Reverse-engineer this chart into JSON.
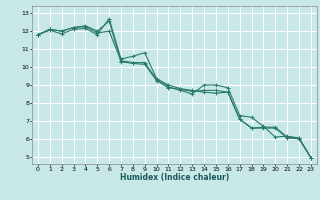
{
  "xlabel": "Humidex (Indice chaleur)",
  "ylabel": "",
  "bg_color": "#c8e8e8",
  "grid_color": "#ffffff",
  "line_color": "#2a7a6a",
  "xlim": [
    -0.5,
    23.5
  ],
  "ylim": [
    4.6,
    13.4
  ],
  "yticks": [
    5,
    6,
    7,
    8,
    9,
    10,
    11,
    12,
    13
  ],
  "xticks": [
    0,
    1,
    2,
    3,
    4,
    5,
    6,
    7,
    8,
    9,
    10,
    11,
    12,
    13,
    14,
    15,
    16,
    17,
    18,
    19,
    20,
    21,
    22,
    23
  ],
  "line1_x": [
    0,
    1,
    2,
    3,
    4,
    5,
    6,
    7,
    8,
    9,
    10,
    11,
    12,
    13,
    14,
    15,
    16,
    17,
    18,
    19,
    20,
    21,
    22,
    23
  ],
  "line1_y": [
    11.8,
    12.1,
    12.0,
    12.2,
    12.3,
    12.0,
    12.55,
    10.3,
    10.2,
    10.15,
    9.25,
    8.85,
    8.75,
    8.65,
    8.7,
    8.7,
    8.6,
    7.1,
    6.6,
    6.65,
    6.65,
    6.1,
    6.05,
    4.95
  ],
  "line2_x": [
    0,
    1,
    2,
    3,
    4,
    5,
    6,
    7,
    8,
    9,
    10,
    11,
    12,
    13,
    14,
    15,
    16,
    17,
    18,
    19,
    20,
    21,
    22,
    23
  ],
  "line2_y": [
    11.8,
    12.1,
    12.0,
    12.2,
    12.25,
    11.9,
    12.0,
    10.35,
    10.25,
    10.25,
    9.3,
    8.9,
    8.7,
    8.5,
    9.0,
    9.0,
    8.85,
    7.3,
    7.2,
    6.7,
    6.1,
    6.15,
    6.05,
    4.95
  ],
  "line3_x": [
    0,
    1,
    2,
    3,
    4,
    5,
    6,
    7,
    8,
    9,
    10,
    11,
    12,
    13,
    14,
    15,
    16,
    17,
    18,
    19,
    20,
    21,
    22,
    23
  ],
  "line3_y": [
    11.8,
    12.05,
    11.85,
    12.1,
    12.15,
    11.8,
    12.7,
    10.45,
    10.6,
    10.8,
    9.35,
    9.0,
    8.8,
    8.7,
    8.6,
    8.55,
    8.6,
    7.1,
    6.6,
    6.6,
    6.6,
    6.05,
    6.0,
    4.95
  ],
  "xlabel_fontsize": 5.5,
  "tick_fontsize": 4.5
}
